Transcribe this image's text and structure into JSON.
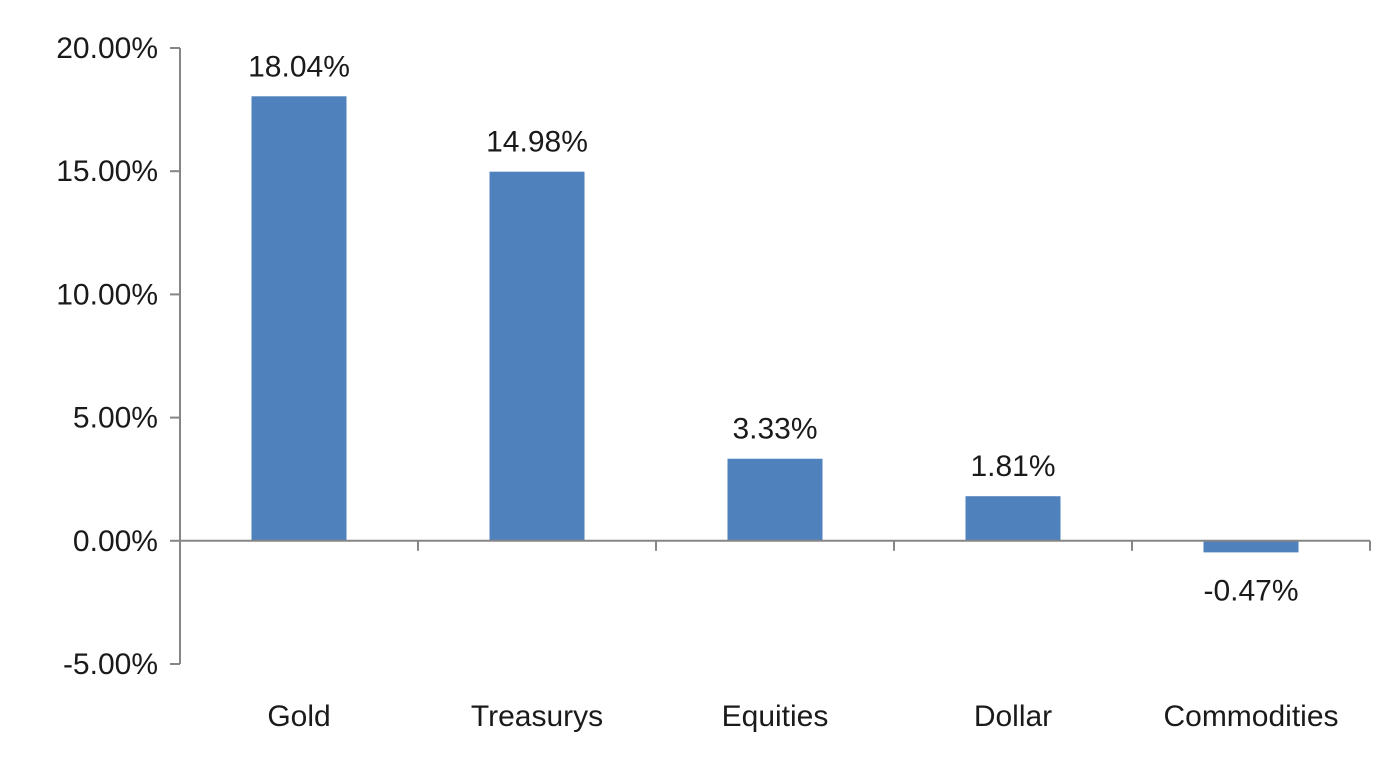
{
  "chart_data": {
    "type": "bar",
    "title": "",
    "xlabel": "",
    "ylabel": "",
    "categories": [
      "Gold",
      "Treasurys",
      "Equities",
      "Dollar",
      "Commodities"
    ],
    "values": [
      18.04,
      14.98,
      3.33,
      1.81,
      -0.47
    ],
    "data_labels": [
      "18.04%",
      "14.98%",
      "3.33%",
      "1.81%",
      "-0.47%"
    ],
    "ylim": [
      -5,
      20
    ],
    "yticks": [
      20,
      15,
      10,
      5,
      0,
      -5
    ],
    "ytick_labels": [
      "20.00%",
      "15.00%",
      "10.00%",
      "5.00%",
      "0.00%",
      "-5.00%"
    ],
    "bar_color": "#4F81BD",
    "grid": false,
    "legend": "none"
  }
}
